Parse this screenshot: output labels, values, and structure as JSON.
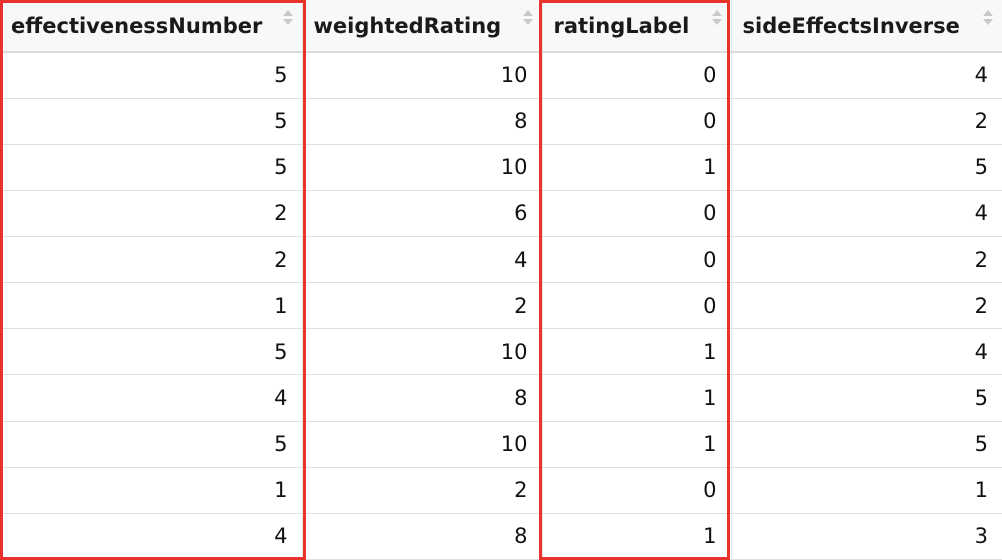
{
  "table": {
    "columns": [
      {
        "key": "effectivenessNumber",
        "label": "effectivenessNumber"
      },
      {
        "key": "weightedRating",
        "label": "weightedRating"
      },
      {
        "key": "ratingLabel",
        "label": "ratingLabel"
      },
      {
        "key": "sideEffectsInverse",
        "label": "sideEffectsInverse"
      }
    ],
    "rows": [
      [
        "5",
        "10",
        "0",
        "4"
      ],
      [
        "5",
        "8",
        "0",
        "2"
      ],
      [
        "5",
        "10",
        "1",
        "5"
      ],
      [
        "2",
        "6",
        "0",
        "4"
      ],
      [
        "2",
        "4",
        "0",
        "2"
      ],
      [
        "1",
        "2",
        "0",
        "2"
      ],
      [
        "5",
        "10",
        "1",
        "4"
      ],
      [
        "4",
        "8",
        "1",
        "5"
      ],
      [
        "5",
        "10",
        "1",
        "5"
      ],
      [
        "1",
        "2",
        "0",
        "1"
      ],
      [
        "4",
        "8",
        "1",
        "3"
      ]
    ]
  },
  "highlight": {
    "color": "#e8322d",
    "highlighted_columns": [
      "effectivenessNumber",
      "ratingLabel",
      "sideEffectsInverse"
    ]
  },
  "icons": {
    "sort": "sort-arrows-icon"
  }
}
